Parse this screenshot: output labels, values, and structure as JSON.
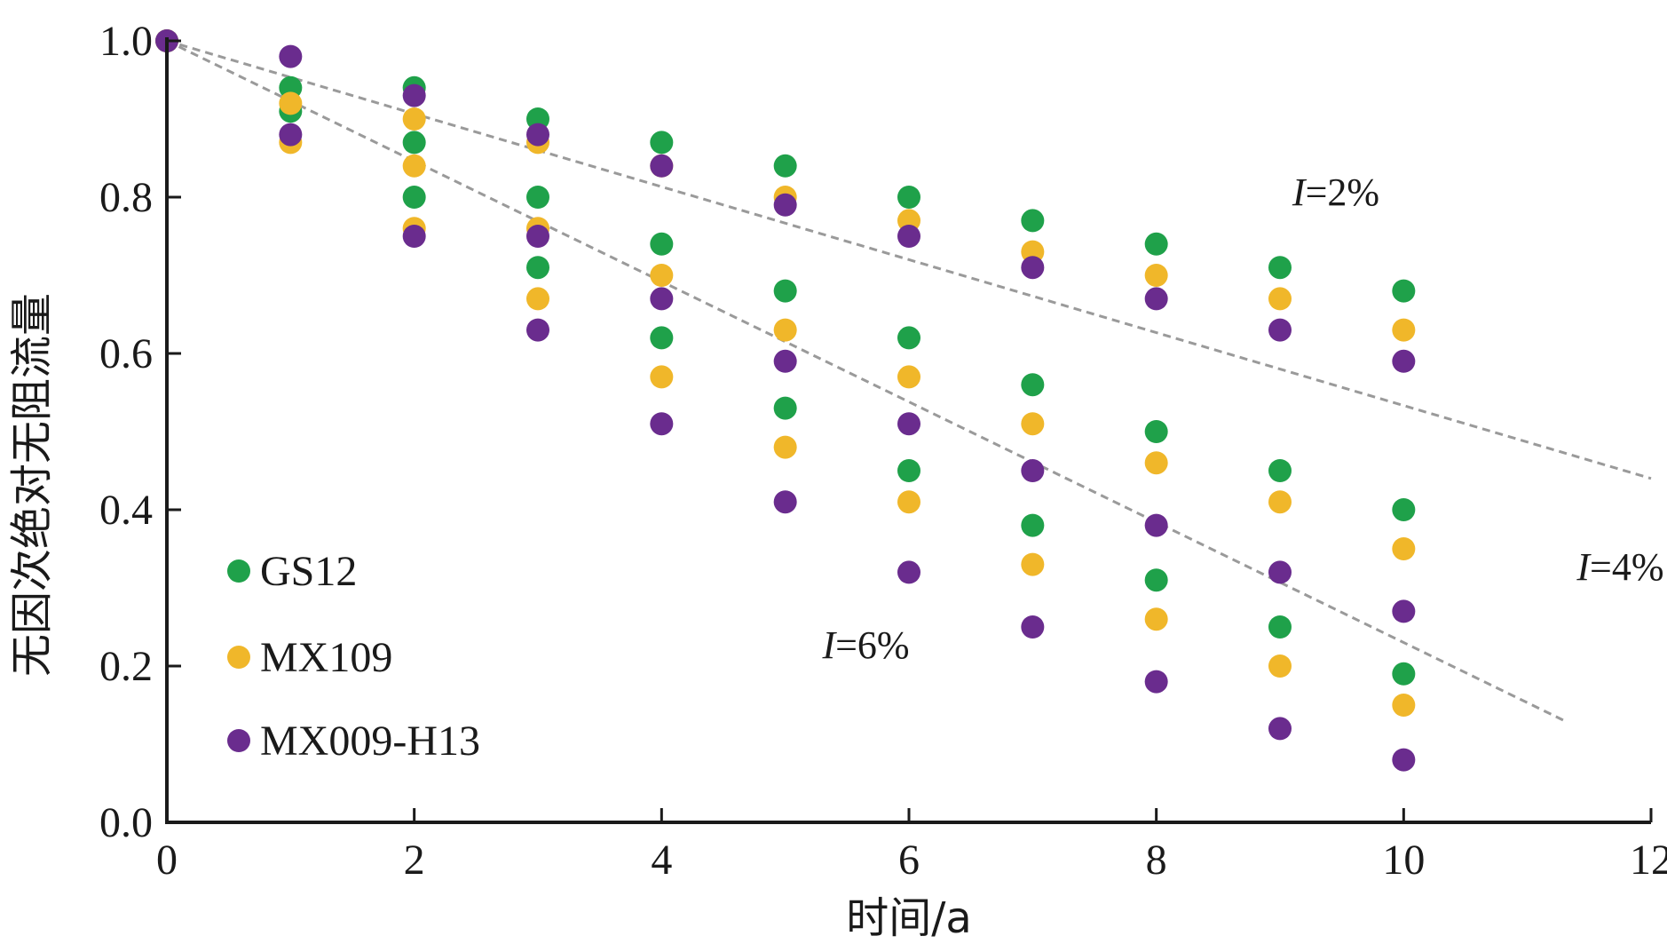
{
  "chart_data": {
    "type": "scatter",
    "xlabel": "时间/a",
    "ylabel": "无因次绝对无阻流量",
    "xlim": [
      0,
      12
    ],
    "ylim": [
      0,
      1.0
    ],
    "xticks": [
      0,
      2,
      4,
      6,
      8,
      10,
      12
    ],
    "yticks": [
      0.0,
      0.2,
      0.4,
      0.6,
      0.8,
      1.0
    ],
    "xtick_labels": [
      "0",
      "2",
      "4",
      "6",
      "8",
      "10",
      "12"
    ],
    "ytick_labels": [
      "0.0",
      "0.2",
      "0.4",
      "0.6",
      "0.8",
      "1.0"
    ],
    "grid": false,
    "legend_position": "left",
    "series": [
      {
        "name": "GS12",
        "color": "#1fa14a",
        "points": [
          [
            0,
            1.0
          ],
          [
            1,
            0.94
          ],
          [
            1,
            0.91
          ],
          [
            2,
            0.94
          ],
          [
            2,
            0.87
          ],
          [
            2,
            0.8
          ],
          [
            3,
            0.9
          ],
          [
            3,
            0.8
          ],
          [
            3,
            0.71
          ],
          [
            4,
            0.87
          ],
          [
            4,
            0.74
          ],
          [
            4,
            0.62
          ],
          [
            5,
            0.84
          ],
          [
            5,
            0.68
          ],
          [
            5,
            0.53
          ],
          [
            6,
            0.8
          ],
          [
            6,
            0.62
          ],
          [
            6,
            0.45
          ],
          [
            7,
            0.77
          ],
          [
            7,
            0.56
          ],
          [
            7,
            0.38
          ],
          [
            8,
            0.74
          ],
          [
            8,
            0.5
          ],
          [
            8,
            0.31
          ],
          [
            9,
            0.71
          ],
          [
            9,
            0.45
          ],
          [
            9,
            0.25
          ],
          [
            10,
            0.68
          ],
          [
            10,
            0.4
          ],
          [
            10,
            0.19
          ]
        ]
      },
      {
        "name": "MX109",
        "color": "#f0b72a",
        "points": [
          [
            0,
            1.0
          ],
          [
            1,
            0.92
          ],
          [
            1,
            0.87
          ],
          [
            2,
            0.9
          ],
          [
            2,
            0.84
          ],
          [
            2,
            0.76
          ],
          [
            3,
            0.87
          ],
          [
            3,
            0.76
          ],
          [
            3,
            0.67
          ],
          [
            4,
            0.84
          ],
          [
            4,
            0.7
          ],
          [
            4,
            0.57
          ],
          [
            5,
            0.8
          ],
          [
            5,
            0.63
          ],
          [
            5,
            0.48
          ],
          [
            6,
            0.77
          ],
          [
            6,
            0.57
          ],
          [
            6,
            0.41
          ],
          [
            7,
            0.73
          ],
          [
            7,
            0.51
          ],
          [
            7,
            0.33
          ],
          [
            8,
            0.7
          ],
          [
            8,
            0.46
          ],
          [
            8,
            0.26
          ],
          [
            9,
            0.67
          ],
          [
            9,
            0.41
          ],
          [
            9,
            0.2
          ],
          [
            10,
            0.63
          ],
          [
            10,
            0.35
          ],
          [
            10,
            0.15
          ]
        ]
      },
      {
        "name": "MX009-H13",
        "color": "#6a2c8e",
        "points": [
          [
            0,
            1.0
          ],
          [
            1,
            0.98
          ],
          [
            1,
            0.88
          ],
          [
            2,
            0.93
          ],
          [
            2,
            0.75
          ],
          [
            3,
            0.88
          ],
          [
            3,
            0.75
          ],
          [
            3,
            0.63
          ],
          [
            4,
            0.84
          ],
          [
            4,
            0.67
          ],
          [
            4,
            0.51
          ],
          [
            5,
            0.79
          ],
          [
            5,
            0.59
          ],
          [
            5,
            0.41
          ],
          [
            6,
            0.75
          ],
          [
            6,
            0.51
          ],
          [
            6,
            0.32
          ],
          [
            7,
            0.71
          ],
          [
            7,
            0.45
          ],
          [
            7,
            0.25
          ],
          [
            8,
            0.67
          ],
          [
            8,
            0.38
          ],
          [
            8,
            0.18
          ],
          [
            9,
            0.63
          ],
          [
            9,
            0.32
          ],
          [
            9,
            0.12
          ],
          [
            10,
            0.59
          ],
          [
            10,
            0.27
          ],
          [
            10,
            0.08
          ]
        ]
      }
    ],
    "trend_lines": [
      {
        "color": "#9a9a9a",
        "from": [
          0,
          1.0
        ],
        "to": [
          12,
          0.44
        ]
      },
      {
        "color": "#9a9a9a",
        "from": [
          0,
          1.0
        ],
        "to": [
          11.3,
          0.13
        ]
      }
    ],
    "annotations": [
      {
        "italic": "I",
        "rest": "=2%",
        "x": 9.1,
        "y": 0.79
      },
      {
        "italic": "I",
        "rest": "=4%",
        "x": 11.4,
        "y": 0.31
      },
      {
        "italic": "I",
        "rest": "=6%",
        "x": 5.3,
        "y": 0.21
      }
    ]
  }
}
